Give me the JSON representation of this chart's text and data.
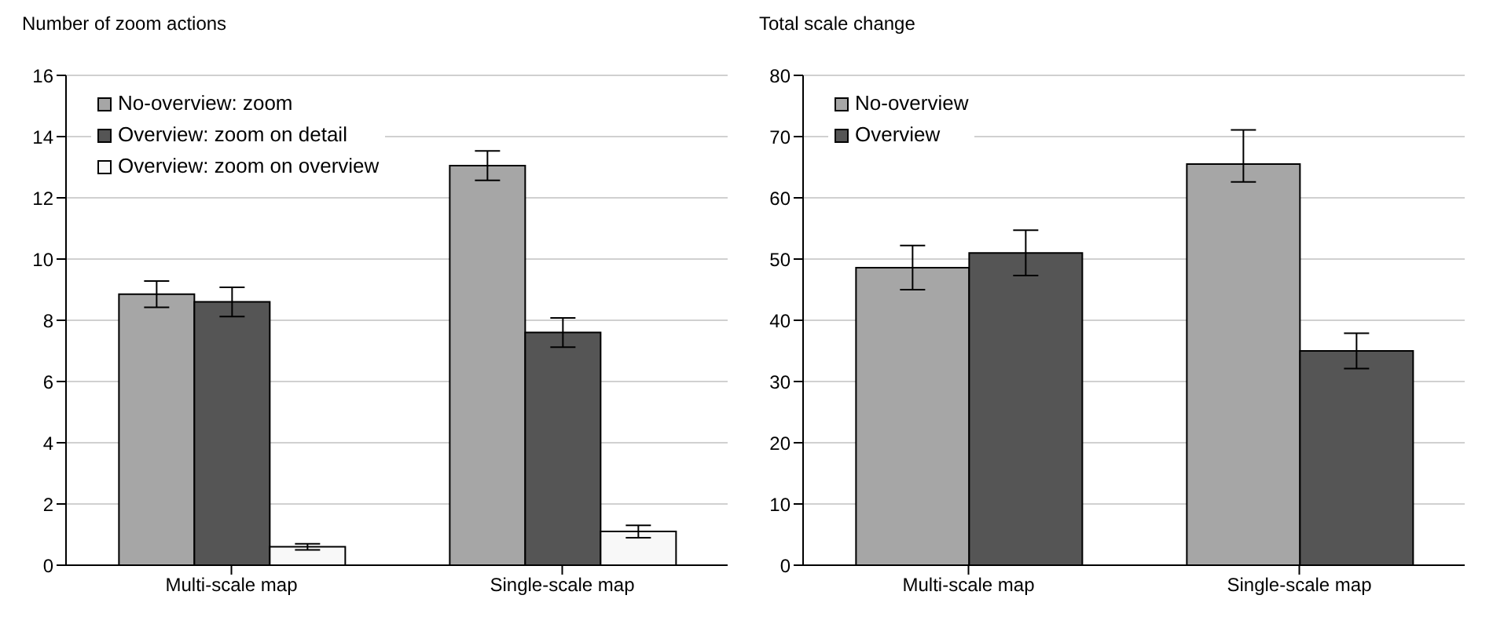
{
  "chart_data": [
    {
      "type": "bar",
      "title": "Number of zoom actions",
      "categories": [
        "Multi-scale map",
        "Single-scale map"
      ],
      "series": [
        {
          "name": "No-overview: zoom",
          "color": "#a6a6a6",
          "values": [
            8.85,
            13.05
          ],
          "errors": [
            0.43,
            0.48
          ]
        },
        {
          "name": "Overview: zoom on detail",
          "color": "#555555",
          "values": [
            8.6,
            7.6
          ],
          "errors": [
            0.48,
            0.48
          ]
        },
        {
          "name": "Overview: zoom on overview",
          "color": "#f8f8f8",
          "values": [
            0.6,
            1.1
          ],
          "errors": [
            0.1,
            0.2
          ]
        }
      ],
      "ylim": [
        0,
        16
      ],
      "yticks": [
        0,
        2,
        4,
        6,
        8,
        10,
        12,
        14,
        16
      ],
      "grid": "y",
      "legend": "top left"
    },
    {
      "type": "bar",
      "title": "Total scale change",
      "categories": [
        "Multi-scale map",
        "Single-scale map"
      ],
      "series": [
        {
          "name": "No-overview",
          "color": "#a6a6a6",
          "values": [
            48.6,
            65.5
          ],
          "errors": [
            3.6,
            [
              62.6,
              71.1
            ]
          ]
        },
        {
          "name": "Overview",
          "color": "#555555",
          "values": [
            51.0,
            35.0
          ],
          "errors": [
            3.7,
            2.9
          ]
        }
      ],
      "ylim": [
        0,
        80
      ],
      "yticks": [
        0,
        10,
        20,
        30,
        40,
        50,
        60,
        70,
        80
      ],
      "grid": "y",
      "legend": "top left"
    }
  ]
}
